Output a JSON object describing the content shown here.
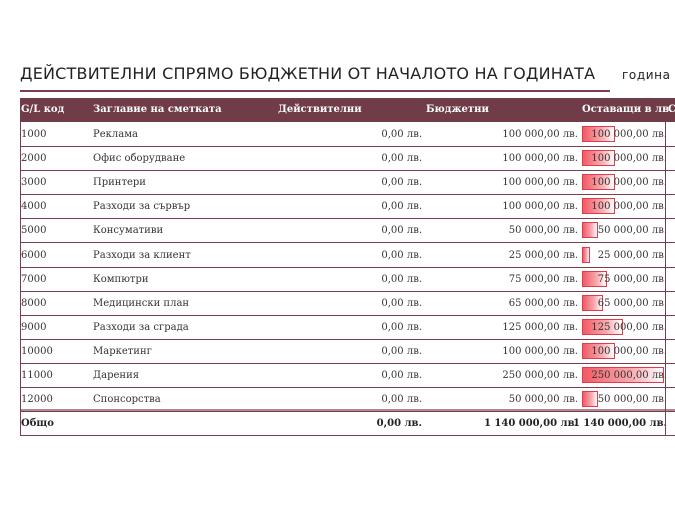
{
  "report": {
    "title": "ДЕЙСТВИТЕЛНИ СПРЯМО БЮДЖЕТНИ ОТ НАЧАЛОТО НА ГОДИНАТА",
    "year_label": "година"
  },
  "table": {
    "headers": {
      "code": "G/L код",
      "name": "Заглавие на сметката",
      "actual": "Действителни",
      "budget": "Бюджетни",
      "remaining": "Оставащи в лв.",
      "overflow": "С"
    },
    "rows": [
      {
        "code": "1000",
        "name": "Реклама",
        "actual": "0,00 лв.",
        "budget": "100 000,00 лв.",
        "remaining": "100 000,00 лв.",
        "bar_fraction": 0.4
      },
      {
        "code": "2000",
        "name": "Офис оборудване",
        "actual": "0,00 лв.",
        "budget": "100 000,00 лв.",
        "remaining": "100 000,00 лв.",
        "bar_fraction": 0.4
      },
      {
        "code": "3000",
        "name": "Принтери",
        "actual": "0,00 лв.",
        "budget": "100 000,00 лв.",
        "remaining": "100 000,00 лв.",
        "bar_fraction": 0.4
      },
      {
        "code": "4000",
        "name": "Разходи за сървър",
        "actual": "0,00 лв.",
        "budget": "100 000,00 лв.",
        "remaining": "100 000,00 лв.",
        "bar_fraction": 0.4
      },
      {
        "code": "5000",
        "name": "Консумативи",
        "actual": "0,00 лв.",
        "budget": "50 000,00 лв.",
        "remaining": "50 000,00 лв.",
        "bar_fraction": 0.2
      },
      {
        "code": "6000",
        "name": "Разходи за клиент",
        "actual": "0,00 лв.",
        "budget": "25 000,00 лв.",
        "remaining": "25 000,00 лв.",
        "bar_fraction": 0.1
      },
      {
        "code": "7000",
        "name": "Компютри",
        "actual": "0,00 лв.",
        "budget": "75 000,00 лв.",
        "remaining": "75 000,00 лв.",
        "bar_fraction": 0.3
      },
      {
        "code": "8000",
        "name": "Медицински план",
        "actual": "0,00 лв.",
        "budget": "65 000,00 лв.",
        "remaining": "65 000,00 лв.",
        "bar_fraction": 0.26
      },
      {
        "code": "9000",
        "name": "Разходи за сграда",
        "actual": "0,00 лв.",
        "budget": "125 000,00 лв.",
        "remaining": "125 000,00 лв.",
        "bar_fraction": 0.5
      },
      {
        "code": "10000",
        "name": "Маркетинг",
        "actual": "0,00 лв.",
        "budget": "100 000,00 лв.",
        "remaining": "100 000,00 лв.",
        "bar_fraction": 0.4
      },
      {
        "code": "11000",
        "name": "Дарения",
        "actual": "0,00 лв.",
        "budget": "250 000,00 лв.",
        "remaining": "250 000,00 лв.",
        "bar_fraction": 1.0
      },
      {
        "code": "12000",
        "name": "Спонсорства",
        "actual": "0,00 лв.",
        "budget": "50 000,00 лв.",
        "remaining": "50 000,00 лв.",
        "bar_fraction": 0.2
      }
    ],
    "total": {
      "label": "Общо",
      "actual": "0,00 лв.",
      "budget": "1 140 000,00 лв.",
      "remaining": "1 140 000,00 лв."
    },
    "colors": {
      "header_bg": "#6f3c47",
      "bar_fill": "#f15a65",
      "bar_border": "#e23b4b"
    }
  }
}
